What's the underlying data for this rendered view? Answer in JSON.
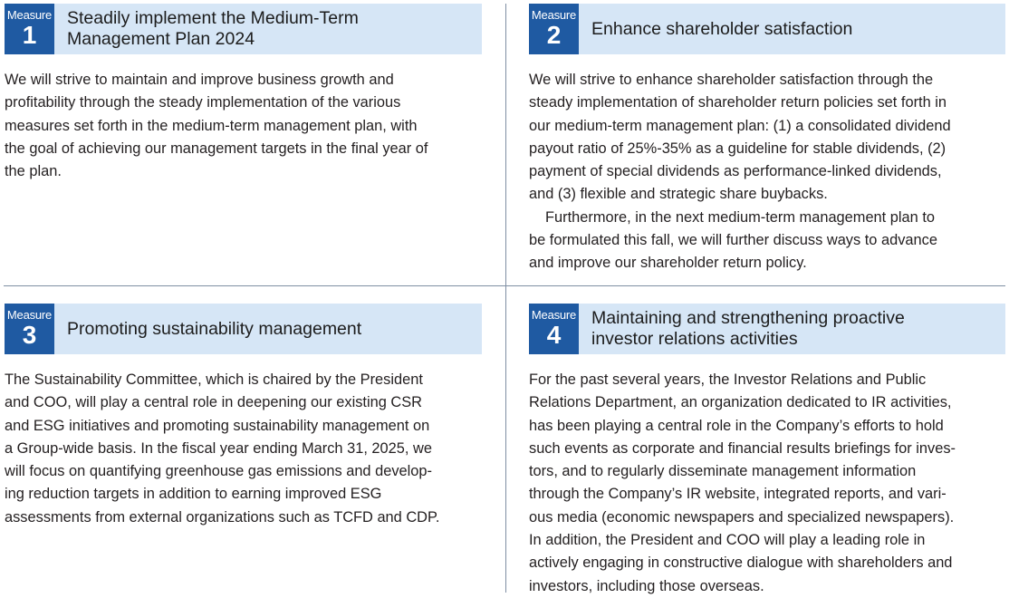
{
  "measures": [
    {
      "badge_label": "Measure",
      "number": "1",
      "title_lines": [
        "Steadily implement the Medium-Term",
        "Management Plan 2024"
      ],
      "body_lines": [
        "We will strive to maintain and improve business growth and",
        "profitability through the steady implementation of the various",
        "measures set forth in the medium-term management plan, with",
        "the goal of achieving our management targets in the final year of",
        "the plan."
      ]
    },
    {
      "badge_label": "Measure",
      "number": "2",
      "title_lines": [
        "Enhance shareholder satisfaction"
      ],
      "body_lines": [
        "We will strive to enhance shareholder satisfaction through the",
        "steady implementation of shareholder return policies set forth in",
        "our medium-term management plan: (1) a consolidated dividend",
        "payout ratio of 25%-35% as a guideline for stable dividends, (2)",
        "payment of special dividends as performance-linked dividends,",
        "and (3) flexible and strategic share buybacks.",
        "Furthermore, in the next medium-term management plan to",
        "be formulated this fall, we will further discuss ways to advance",
        "and improve our shareholder return policy."
      ]
    },
    {
      "badge_label": "Measure",
      "number": "3",
      "title_lines": [
        "Promoting sustainability management"
      ],
      "body_lines": [
        "The Sustainability Committee, which is chaired by the President",
        "and COO, will play a central role in deepening our existing CSR",
        "and ESG initiatives and promoting sustainability management on",
        "a Group-wide basis. In the fiscal year ending March 31, 2025, we",
        "will focus on quantifying greenhouse gas emissions and develop-",
        "ing reduction targets in addition to earning improved ESG",
        "assessments from external organizations such as TCFD and CDP."
      ]
    },
    {
      "badge_label": "Measure",
      "number": "4",
      "title_lines": [
        "Maintaining and strengthening proactive",
        "investor relations activities"
      ],
      "body_lines": [
        "For the past several years, the Investor Relations and Public",
        "Relations Department, an organization dedicated to IR activities,",
        "has been playing a central role in the Company’s efforts to hold",
        "such events as corporate and financial results briefings for inves-",
        "tors, and to regularly disseminate management information",
        "through the Company’s IR website, integrated reports, and vari-",
        "ous media (economic newspapers and specialized newspapers).",
        "In addition, the President and COO will play a leading role in",
        "actively engaging in constructive dialogue with shareholders and",
        "investors, including those overseas."
      ]
    }
  ],
  "colors": {
    "badge": "#1f5aa2",
    "header_band": "#d6e6f6",
    "divider": "#7f8fa3",
    "text": "#231f20"
  }
}
